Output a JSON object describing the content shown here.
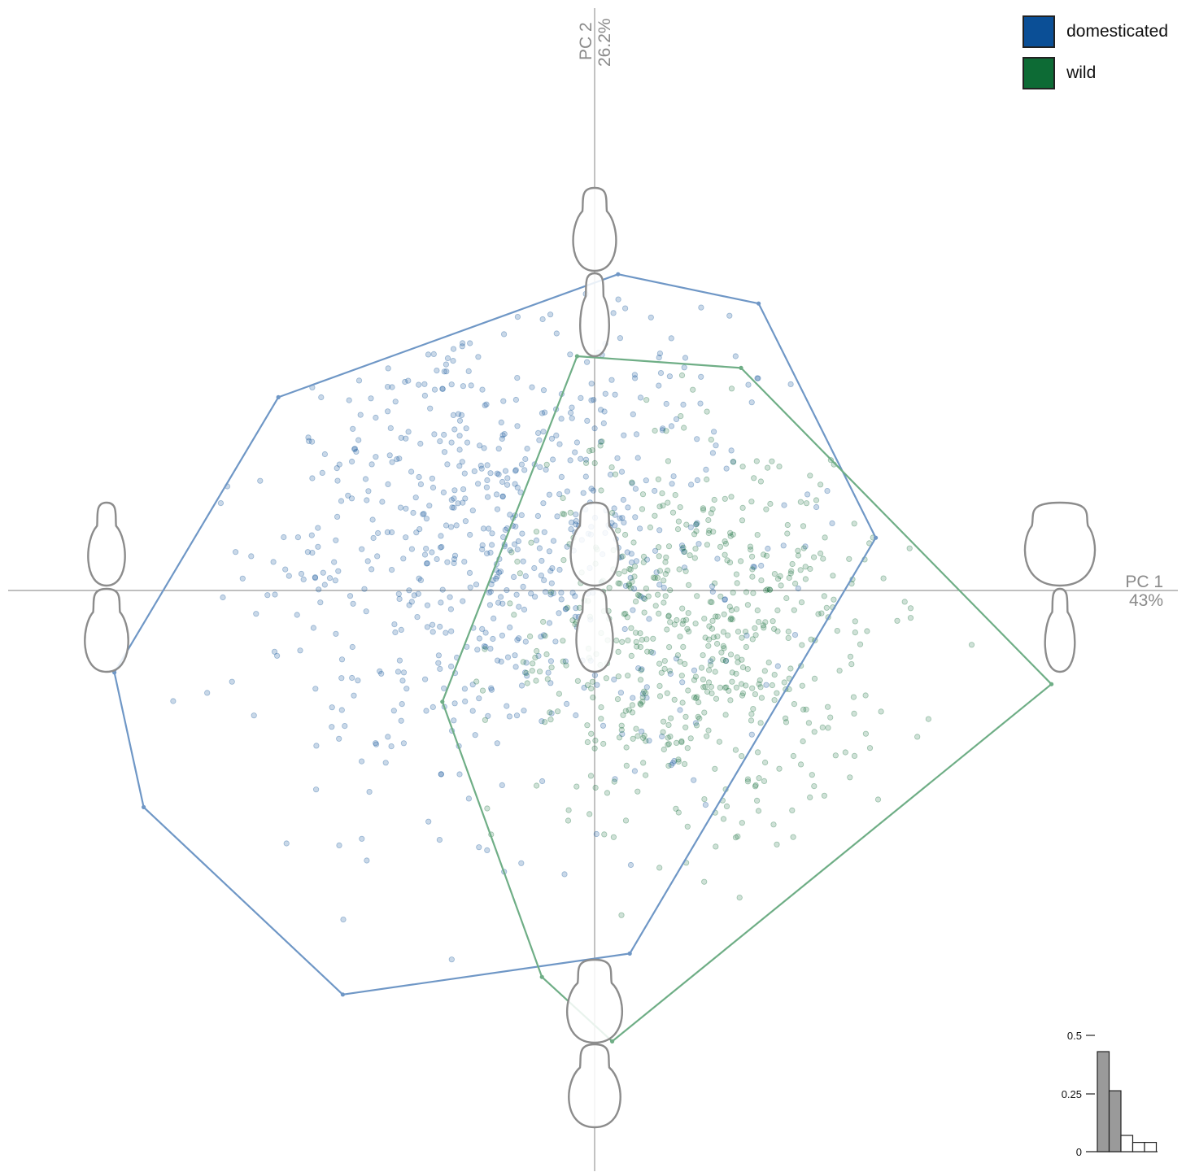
{
  "legend": [
    {
      "label": "domesticated",
      "color": "#0b4f96"
    },
    {
      "label": "wild",
      "color": "#0d6b35"
    }
  ],
  "axes": {
    "pc1_label": "PC 1",
    "pc1_var": "43%",
    "pc2_label": "PC 2",
    "pc2_var": "26.2%"
  },
  "chart_data": [
    {
      "type": "scatter",
      "title": "",
      "xlabel": "PC 1 (43%)",
      "ylabel": "PC 2 (26.2%)",
      "xlim": [
        -1.0,
        1.0
      ],
      "ylim": [
        -1.0,
        1.0
      ],
      "grid": false,
      "legend_position": "top-right",
      "series": [
        {
          "name": "domesticated",
          "color": "#0b4f96",
          "n_points": 700,
          "center": [
            -0.17,
            0.1
          ],
          "spread": [
            0.22,
            0.22
          ],
          "hull": [
            [
              0.04,
              0.54
            ],
            [
              0.28,
              0.49
            ],
            [
              0.48,
              0.09
            ],
            [
              0.06,
              -0.62
            ],
            [
              -0.43,
              -0.69
            ],
            [
              -0.77,
              -0.37
            ],
            [
              -0.82,
              -0.14
            ],
            [
              -0.54,
              0.33
            ]
          ]
        },
        {
          "name": "wild",
          "color": "#0d6b35",
          "n_points": 600,
          "center": [
            0.18,
            -0.08
          ],
          "spread": [
            0.17,
            0.17
          ],
          "hull": [
            [
              -0.03,
              0.4
            ],
            [
              0.25,
              0.38
            ],
            [
              0.78,
              -0.16
            ],
            [
              0.03,
              -0.77
            ],
            [
              -0.09,
              -0.66
            ],
            [
              -0.26,
              -0.19
            ]
          ]
        }
      ],
      "shape_icons": {
        "description": "Outline shapes drawn at the axis extremes and near the origin.",
        "positions": [
          "pc1-negative",
          "pc1-positive",
          "pc2-positive",
          "pc2-negative",
          "origin"
        ]
      }
    },
    {
      "type": "bar",
      "title": "",
      "yticks": [
        "0",
        "0.25",
        "0.5"
      ],
      "ylim": [
        0,
        0.5
      ],
      "values": [
        0.43,
        0.262,
        0.07,
        0.04,
        0.04
      ],
      "highlighted_count": 2,
      "colors": {
        "highlighted": "#9a9a9a",
        "other": "#ffffff"
      }
    }
  ]
}
